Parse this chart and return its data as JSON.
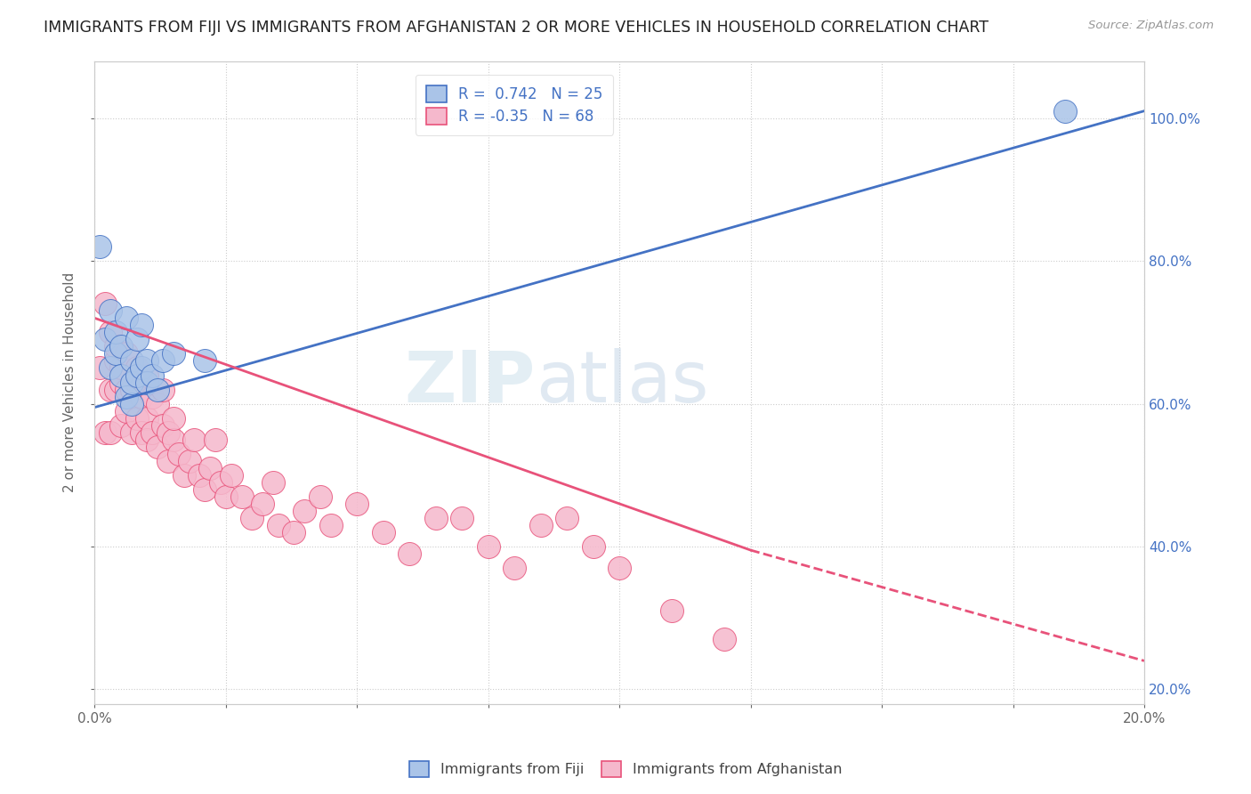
{
  "title": "IMMIGRANTS FROM FIJI VS IMMIGRANTS FROM AFGHANISTAN 2 OR MORE VEHICLES IN HOUSEHOLD CORRELATION CHART",
  "source": "Source: ZipAtlas.com",
  "ylabel": "2 or more Vehicles in Household",
  "xlim": [
    0.0,
    0.2
  ],
  "ylim": [
    0.18,
    1.08
  ],
  "fiji_R": 0.742,
  "fiji_N": 25,
  "afghanistan_R": -0.35,
  "afghanistan_N": 68,
  "fiji_color": "#aac4e8",
  "afghanistan_color": "#f5b8cc",
  "fiji_line_color": "#4472c4",
  "afghanistan_line_color": "#e8527a",
  "fiji_line": [
    0.0,
    0.595,
    0.2,
    1.01
  ],
  "afg_line_solid": [
    0.0,
    0.72,
    0.125,
    0.395
  ],
  "afg_line_dash": [
    0.125,
    0.395,
    0.2,
    0.24
  ],
  "fiji_scatter_x": [
    0.001,
    0.002,
    0.003,
    0.003,
    0.004,
    0.004,
    0.005,
    0.005,
    0.006,
    0.006,
    0.007,
    0.007,
    0.007,
    0.008,
    0.008,
    0.009,
    0.009,
    0.01,
    0.01,
    0.011,
    0.012,
    0.013,
    0.015,
    0.021,
    0.185
  ],
  "fiji_scatter_y": [
    0.82,
    0.69,
    0.73,
    0.65,
    0.67,
    0.7,
    0.64,
    0.68,
    0.72,
    0.61,
    0.6,
    0.66,
    0.63,
    0.64,
    0.69,
    0.65,
    0.71,
    0.66,
    0.63,
    0.64,
    0.62,
    0.66,
    0.67,
    0.66,
    1.01
  ],
  "afghanistan_scatter_x": [
    0.001,
    0.002,
    0.002,
    0.003,
    0.003,
    0.003,
    0.004,
    0.004,
    0.004,
    0.005,
    0.005,
    0.005,
    0.006,
    0.006,
    0.006,
    0.007,
    0.007,
    0.008,
    0.008,
    0.008,
    0.009,
    0.009,
    0.01,
    0.01,
    0.01,
    0.011,
    0.011,
    0.012,
    0.012,
    0.013,
    0.013,
    0.014,
    0.014,
    0.015,
    0.015,
    0.016,
    0.017,
    0.018,
    0.019,
    0.02,
    0.021,
    0.022,
    0.023,
    0.024,
    0.025,
    0.026,
    0.028,
    0.03,
    0.032,
    0.034,
    0.035,
    0.038,
    0.04,
    0.043,
    0.045,
    0.05,
    0.055,
    0.06,
    0.065,
    0.07,
    0.075,
    0.08,
    0.085,
    0.09,
    0.095,
    0.1,
    0.11,
    0.12
  ],
  "afghanistan_scatter_y": [
    0.65,
    0.74,
    0.56,
    0.7,
    0.62,
    0.56,
    0.66,
    0.68,
    0.62,
    0.63,
    0.57,
    0.65,
    0.62,
    0.67,
    0.59,
    0.62,
    0.56,
    0.63,
    0.58,
    0.65,
    0.61,
    0.56,
    0.64,
    0.58,
    0.55,
    0.61,
    0.56,
    0.6,
    0.54,
    0.57,
    0.62,
    0.56,
    0.52,
    0.55,
    0.58,
    0.53,
    0.5,
    0.52,
    0.55,
    0.5,
    0.48,
    0.51,
    0.55,
    0.49,
    0.47,
    0.5,
    0.47,
    0.44,
    0.46,
    0.49,
    0.43,
    0.42,
    0.45,
    0.47,
    0.43,
    0.46,
    0.42,
    0.39,
    0.44,
    0.44,
    0.4,
    0.37,
    0.43,
    0.44,
    0.4,
    0.37,
    0.31,
    0.27
  ]
}
